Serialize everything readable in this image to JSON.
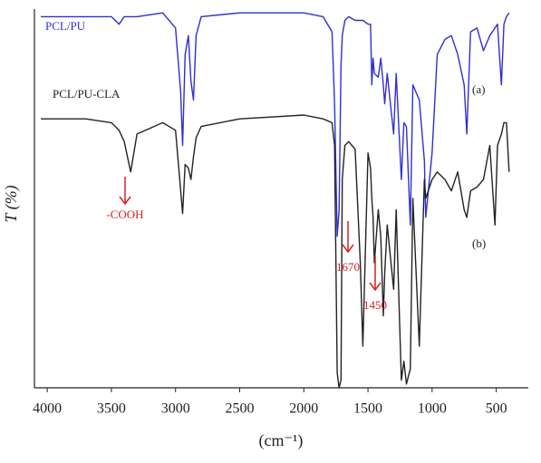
{
  "chart_data": {
    "type": "line",
    "x_label": "(cm⁻¹)",
    "y_label": "T (%)",
    "x": [
      4050,
      3700,
      3500,
      3440,
      3400,
      3350,
      3300,
      3100,
      3000,
      2960,
      2945,
      2925,
      2900,
      2880,
      2860,
      2840,
      2800,
      2500,
      2000,
      1850,
      1780,
      1760,
      1740,
      1725,
      1710,
      1700,
      1680,
      1650,
      1600,
      1560,
      1540,
      1500,
      1480,
      1470,
      1460,
      1450,
      1420,
      1400,
      1380,
      1370,
      1350,
      1300,
      1280,
      1240,
      1220,
      1200,
      1170,
      1150,
      1100,
      1060,
      1050,
      1000,
      960,
      900,
      850,
      800,
      750,
      730,
      700,
      650,
      600,
      550,
      510,
      490,
      460,
      440,
      420,
      400
    ],
    "series": [
      {
        "name": "PCL/PU",
        "color": "#2f2fd0",
        "values": [
          98,
          98,
          98,
          96,
          98,
          98,
          98,
          99,
          95,
          78,
          64,
          88,
          93,
          81,
          76,
          93,
          98,
          99,
          99,
          98,
          94,
          75,
          40,
          47,
          85,
          93,
          97,
          98,
          97,
          97,
          97,
          96,
          96,
          80,
          87,
          83,
          82,
          87,
          80,
          75,
          83,
          67,
          83,
          55,
          70,
          69,
          43,
          80,
          76,
          60,
          45,
          62,
          88,
          92,
          93,
          88,
          80,
          67,
          94,
          95,
          89,
          93,
          95,
          96,
          80,
          96,
          98,
          99
        ]
      },
      {
        "name": "PCL/PU-CLA",
        "color": "#222222",
        "values": [
          71,
          71,
          70,
          68,
          65,
          57,
          67,
          70,
          68,
          52,
          46,
          59,
          58,
          55,
          61,
          66,
          69,
          71,
          72,
          71,
          70,
          64,
          4,
          0,
          2,
          55,
          64,
          65,
          63,
          33,
          11,
          62,
          58,
          50,
          45,
          33,
          47,
          40,
          19,
          30,
          43,
          26,
          47,
          2,
          7,
          1,
          5,
          50,
          11,
          55,
          50,
          55,
          57,
          55,
          52,
          57,
          47,
          45,
          52,
          53,
          55,
          64,
          43,
          64,
          67,
          70,
          70,
          57
        ]
      }
    ],
    "annotations": [
      "(a)",
      "(b)",
      "-COOH",
      "1670",
      "1450"
    ],
    "xlim": [
      4100,
      250
    ],
    "xticks": [
      4000,
      3500,
      3000,
      2500,
      2000,
      1500,
      1000,
      500
    ],
    "ylim": [
      0,
      100
    ]
  }
}
